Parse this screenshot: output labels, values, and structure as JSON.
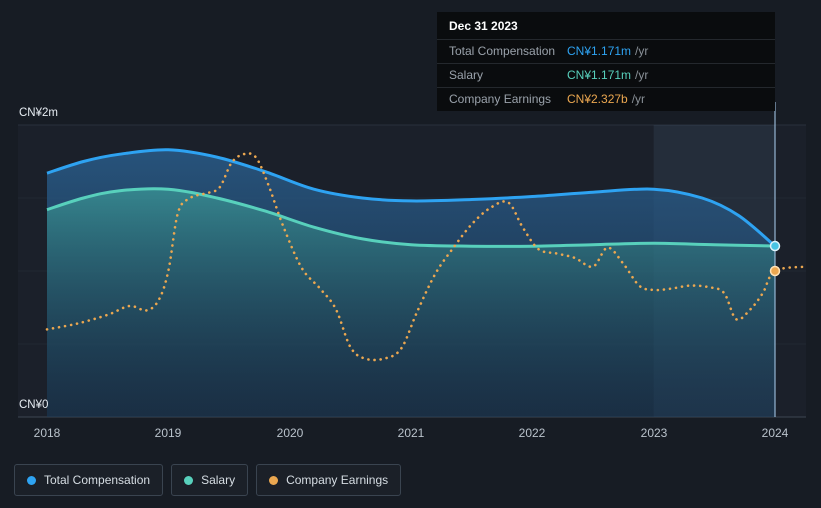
{
  "tooltip": {
    "date": "Dec 31 2023",
    "rows": [
      {
        "label": "Total Compensation",
        "value": "CN¥1.171m",
        "suffix": "/yr",
        "color": "#2ea3f2"
      },
      {
        "label": "Salary",
        "value": "CN¥1.171m",
        "suffix": "/yr",
        "color": "#58d0bc"
      },
      {
        "label": "Company Earnings",
        "value": "CN¥2.327b",
        "suffix": "/yr",
        "color": "#eba750"
      }
    ]
  },
  "axes": {
    "y_top": "CN¥2m",
    "y_bottom": "CN¥0",
    "x_ticks": [
      "2018",
      "2019",
      "2020",
      "2021",
      "2022",
      "2023",
      "2024"
    ]
  },
  "legend": [
    {
      "label": "Total Compensation",
      "color": "#2ea3f2"
    },
    {
      "label": "Salary",
      "color": "#58d0bc"
    },
    {
      "label": "Company Earnings",
      "color": "#eba750"
    }
  ],
  "chart_data": {
    "type": "line",
    "y_axis": {
      "unit": "CN¥ millions per year",
      "domain_m": [
        0,
        2
      ],
      "tick_labels": [
        "CN¥0",
        "CN¥2m"
      ]
    },
    "x_axis": {
      "domain": [
        2018,
        2024.25
      ],
      "ticks": [
        2018,
        2019,
        2020,
        2021,
        2022,
        2023,
        2024
      ]
    },
    "grid": true,
    "legend_position": "bottom-left",
    "highlight_band": [
      2023,
      2024
    ],
    "marker": {
      "x": 2024,
      "date_label": "Dec 31 2023",
      "total_compensation_m": 1.171,
      "salary_m": 1.171,
      "company_earnings_value": "CN¥2.327b",
      "company_earnings_plotted_m": 1.0
    },
    "series": [
      {
        "name": "Total Compensation",
        "color": "#2ea3f2",
        "style": "solid",
        "area": true,
        "points": [
          [
            2018,
            1.67
          ],
          [
            2018.3,
            1.75
          ],
          [
            2018.6,
            1.8
          ],
          [
            2019,
            1.83
          ],
          [
            2019.4,
            1.78
          ],
          [
            2019.8,
            1.68
          ],
          [
            2020.2,
            1.56
          ],
          [
            2020.6,
            1.5
          ],
          [
            2021,
            1.48
          ],
          [
            2021.5,
            1.49
          ],
          [
            2022,
            1.51
          ],
          [
            2022.5,
            1.54
          ],
          [
            2023,
            1.56
          ],
          [
            2023.4,
            1.5
          ],
          [
            2023.7,
            1.38
          ],
          [
            2024,
            1.171
          ]
        ]
      },
      {
        "name": "Salary",
        "color": "#58d0bc",
        "style": "solid",
        "area": true,
        "points": [
          [
            2018,
            1.42
          ],
          [
            2018.3,
            1.5
          ],
          [
            2018.6,
            1.55
          ],
          [
            2019,
            1.56
          ],
          [
            2019.4,
            1.5
          ],
          [
            2019.8,
            1.41
          ],
          [
            2020.2,
            1.3
          ],
          [
            2020.6,
            1.22
          ],
          [
            2021,
            1.18
          ],
          [
            2021.5,
            1.17
          ],
          [
            2022,
            1.17
          ],
          [
            2022.5,
            1.18
          ],
          [
            2023,
            1.19
          ],
          [
            2023.5,
            1.18
          ],
          [
            2024,
            1.171
          ]
        ]
      },
      {
        "name": "Company Earnings",
        "color": "#eba750",
        "style": "dotted",
        "area": false,
        "scale_note": "plotted on relative scale; value at marker is CN¥2.327b/yr",
        "points": [
          [
            2018,
            0.6
          ],
          [
            2018.25,
            0.64
          ],
          [
            2018.5,
            0.7
          ],
          [
            2018.68,
            0.76
          ],
          [
            2018.82,
            0.73
          ],
          [
            2018.92,
            0.8
          ],
          [
            2019,
            1.0
          ],
          [
            2019.08,
            1.4
          ],
          [
            2019.18,
            1.5
          ],
          [
            2019.3,
            1.53
          ],
          [
            2019.42,
            1.57
          ],
          [
            2019.52,
            1.74
          ],
          [
            2019.62,
            1.8
          ],
          [
            2019.72,
            1.78
          ],
          [
            2019.82,
            1.6
          ],
          [
            2019.95,
            1.3
          ],
          [
            2020.1,
            1.02
          ],
          [
            2020.25,
            0.88
          ],
          [
            2020.38,
            0.74
          ],
          [
            2020.5,
            0.48
          ],
          [
            2020.62,
            0.4
          ],
          [
            2020.78,
            0.4
          ],
          [
            2020.92,
            0.47
          ],
          [
            2021.05,
            0.72
          ],
          [
            2021.2,
            0.98
          ],
          [
            2021.35,
            1.16
          ],
          [
            2021.5,
            1.32
          ],
          [
            2021.65,
            1.43
          ],
          [
            2021.8,
            1.47
          ],
          [
            2021.92,
            1.3
          ],
          [
            2022.05,
            1.15
          ],
          [
            2022.2,
            1.12
          ],
          [
            2022.35,
            1.09
          ],
          [
            2022.5,
            1.03
          ],
          [
            2022.62,
            1.16
          ],
          [
            2022.75,
            1.05
          ],
          [
            2022.88,
            0.9
          ],
          [
            2023,
            0.87
          ],
          [
            2023.15,
            0.88
          ],
          [
            2023.3,
            0.9
          ],
          [
            2023.45,
            0.89
          ],
          [
            2023.58,
            0.85
          ],
          [
            2023.68,
            0.67
          ],
          [
            2023.8,
            0.74
          ],
          [
            2023.9,
            0.85
          ],
          [
            2024,
            1.0
          ],
          [
            2024.25,
            1.03
          ]
        ]
      }
    ]
  }
}
